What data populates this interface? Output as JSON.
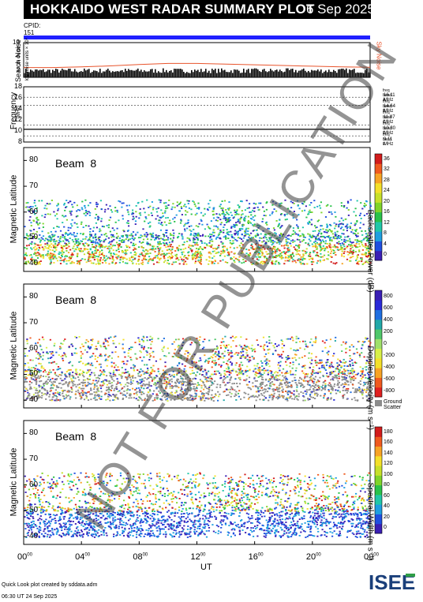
{
  "header": {
    "title": "HOKKAIDO WEST RADAR SUMMARY PLOT",
    "date": "6 Sep 2025"
  },
  "cpid": {
    "label": "CPID:",
    "value": "151"
  },
  "noise_panel": {
    "ylabel": "Search Noise",
    "ysublabel": "log noise units × 10⁴",
    "yticks": [
      "2",
      "4",
      "6",
      "8",
      "10"
    ],
    "sky_noise_label": "Sky Noise"
  },
  "freq_panel": {
    "ylabel": "Frequency",
    "yunit": "(MHz)",
    "yticks": [
      "8",
      "10",
      "12",
      "14",
      "16",
      "18"
    ],
    "bands": [
      {
        "name": "freq band A",
        "value": "16.11 MHz"
      },
      {
        "name": "freq band B",
        "value": "14.64 MHz"
      },
      {
        "name": "freq band C",
        "value": "11.07 MHz"
      },
      {
        "name": "freq band D",
        "value": "10.30 MHz"
      },
      {
        "name": "freq band E",
        "value": "9.11 MHz"
      }
    ]
  },
  "panels": [
    {
      "beam": "Beam  8",
      "ylabel": "Magnetic Latitude",
      "yticks": [
        "40",
        "50",
        "60",
        "70",
        "80"
      ],
      "cbar_label": "Backscatter Power (dB)",
      "cbar_ticks": [
        "0",
        "4",
        "8",
        "12",
        "16",
        "20",
        "24",
        "28",
        "32",
        "36"
      ]
    },
    {
      "beam": "Beam  8",
      "ylabel": "Magnetic Latitude",
      "yticks": [
        "40",
        "50",
        "60",
        "70",
        "80"
      ],
      "cbar_label": "Doppler Velocity (m s⁻¹)",
      "cbar_ticks": [
        "-800",
        "-600",
        "-400",
        "-200",
        "0",
        "200",
        "400",
        "600",
        "800"
      ],
      "ground_scatter_label_1": "Ground",
      "ground_scatter_label_2": "Scatter"
    },
    {
      "beam": "Beam  8",
      "ylabel": "Magnetic Latitude",
      "yticks": [
        "40",
        "50",
        "60",
        "70",
        "80"
      ],
      "cbar_label": "Spectral Width (m s⁻¹)",
      "cbar_ticks": [
        "0",
        "20",
        "40",
        "60",
        "80",
        "100",
        "120",
        "140",
        "160",
        "180"
      ]
    }
  ],
  "xaxis": {
    "label": "UT",
    "ticks": [
      "00",
      "04",
      "08",
      "12",
      "16",
      "20",
      "00"
    ],
    "tick_sup": "00"
  },
  "watermark": "NOT FOR PUBLICATION",
  "footer": {
    "line1": "Quick Look plot created by sddata.adm",
    "line2": "06:30 UT 24 Sep 2025"
  },
  "logo": {
    "text": "ISEE",
    "colors": [
      "#1a3f7a",
      "#2f9e47"
    ]
  },
  "chart_data": [
    {
      "type": "line",
      "title": "Search Noise",
      "series": [
        {
          "name": "Sky Noise",
          "color": "#e8542c"
        }
      ],
      "ylim": [
        0,
        10
      ],
      "xlim_hours": [
        0,
        24
      ],
      "x": [
        0,
        2,
        4,
        6,
        8,
        10,
        12,
        14,
        16,
        18,
        20,
        22,
        24
      ],
      "values": [
        2.8,
        2.8,
        3.0,
        3.3,
        3.7,
        4.0,
        4.0,
        3.8,
        3.6,
        3.4,
        3.2,
        3.0,
        2.9
      ]
    },
    {
      "type": "scatter",
      "title": "Frequency",
      "ylim": [
        8,
        18
      ],
      "xlim_hours": [
        0,
        24
      ],
      "values": [
        10.3,
        10.3
      ],
      "grid_lines": [
        16.11,
        14.64,
        11.07,
        10.3,
        9.11
      ]
    },
    {
      "type": "heatmap",
      "title": "Backscatter Power (dB)",
      "ylim": [
        37,
        85
      ],
      "zlim": [
        0,
        36
      ],
      "xlim_hours": [
        0,
        24
      ]
    },
    {
      "type": "heatmap",
      "title": "Doppler Velocity",
      "ylim": [
        37,
        85
      ],
      "zlim": [
        -800,
        800
      ],
      "xlim_hours": [
        0,
        24
      ]
    },
    {
      "type": "heatmap",
      "title": "Spectral Width",
      "ylim": [
        37,
        85
      ],
      "zlim": [
        0,
        180
      ],
      "xlim_hours": [
        0,
        24
      ]
    }
  ]
}
